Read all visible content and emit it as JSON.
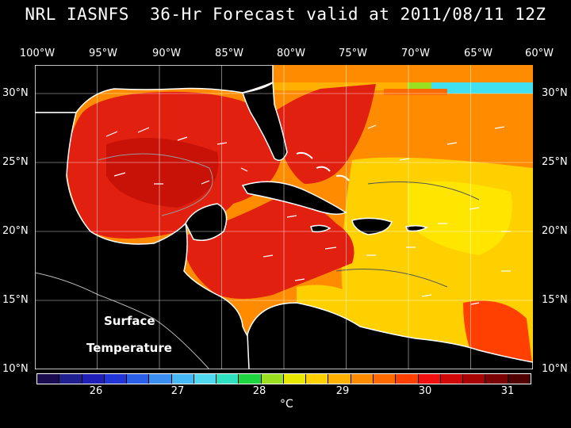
{
  "title": "NRL IASNFS  36-Hr Forecast valid at 2011/08/11 12Z",
  "lon_labels": [
    "100°W",
    "95°W",
    "90°W",
    "85°W",
    "80°W",
    "75°W",
    "70°W",
    "65°W",
    "60°W"
  ],
  "lat_labels": [
    "30°N",
    "25°N",
    "20°N",
    "15°N",
    "10°N"
  ],
  "map_labels": {
    "line1": "Surface",
    "line2": "Temperature"
  },
  "colorbar": {
    "colors": [
      "#1a0a4e",
      "#1f1f8f",
      "#2020b8",
      "#2235d6",
      "#2a5fe8",
      "#3a8ff0",
      "#45b8f5",
      "#4fd8f0",
      "#2fe0c0",
      "#1ed640",
      "#9ae020",
      "#e8e800",
      "#ffd000",
      "#ffb000",
      "#ff8c00",
      "#ff6a00",
      "#ff4000",
      "#f01010",
      "#d00808",
      "#a80404",
      "#7a0202",
      "#500000"
    ],
    "tick_labels": [
      "26",
      "27",
      "28",
      "29",
      "30",
      "31"
    ],
    "unit": "°C"
  },
  "colors": {
    "land": "#000000",
    "coast": "#ffffff",
    "warm_sea": "#e22010",
    "mid_sea": "#ff8c00",
    "cool_sea": "#ffd000"
  }
}
